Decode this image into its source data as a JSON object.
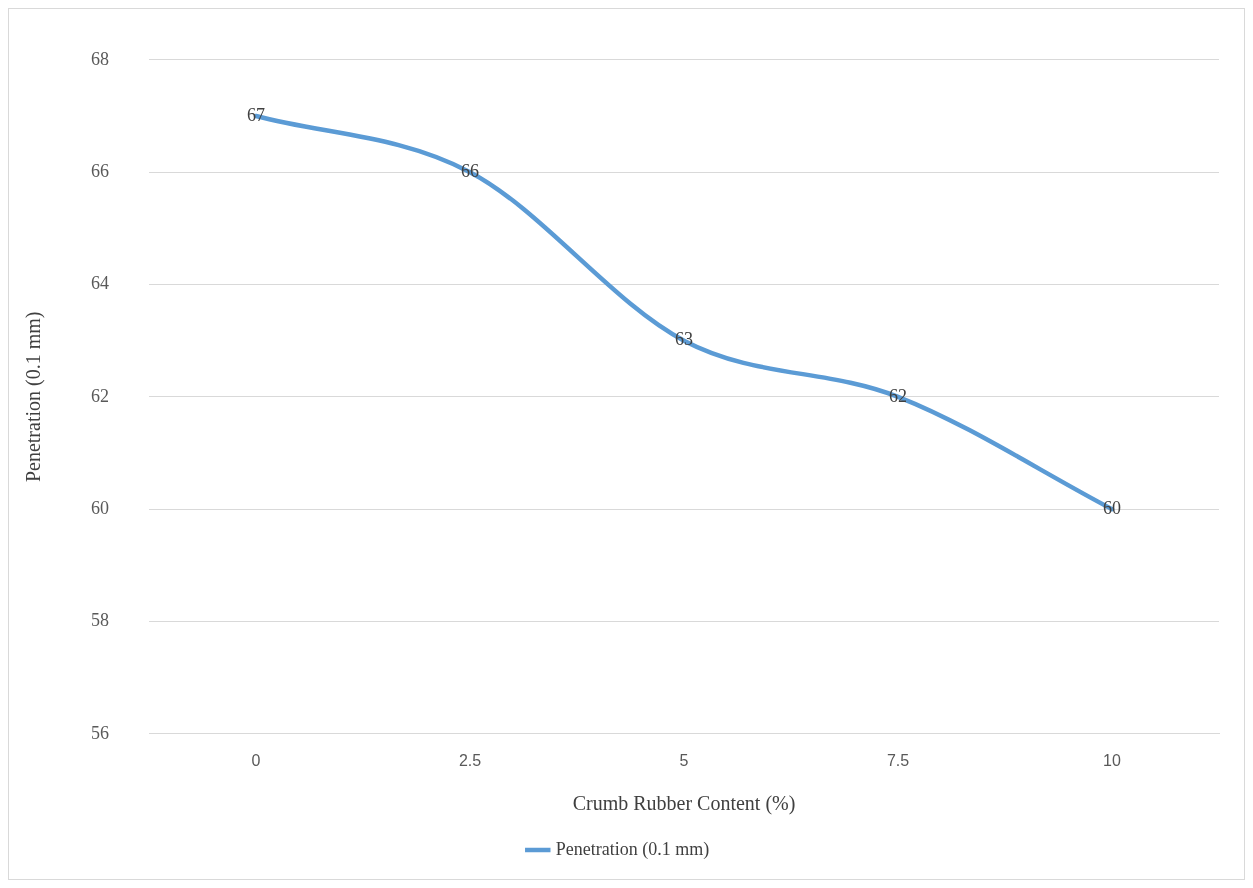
{
  "chart_data": {
    "type": "line",
    "xlabel": "Crumb Rubber Content (%)",
    "ylabel": "Penetration (0.1 mm)",
    "categories": [
      "0",
      "2.5",
      "5",
      "7.5",
      "10"
    ],
    "series": [
      {
        "name": "Penetration (0.1 mm)",
        "color": "#5b9bd5",
        "values": [
          67,
          66,
          63,
          62,
          60
        ]
      }
    ],
    "ylim": [
      56,
      68
    ],
    "yticks": [
      56,
      58,
      60,
      62,
      64,
      66,
      68
    ],
    "grid": "y",
    "legend": "bottom",
    "data_labels": true,
    "marker": "none"
  }
}
